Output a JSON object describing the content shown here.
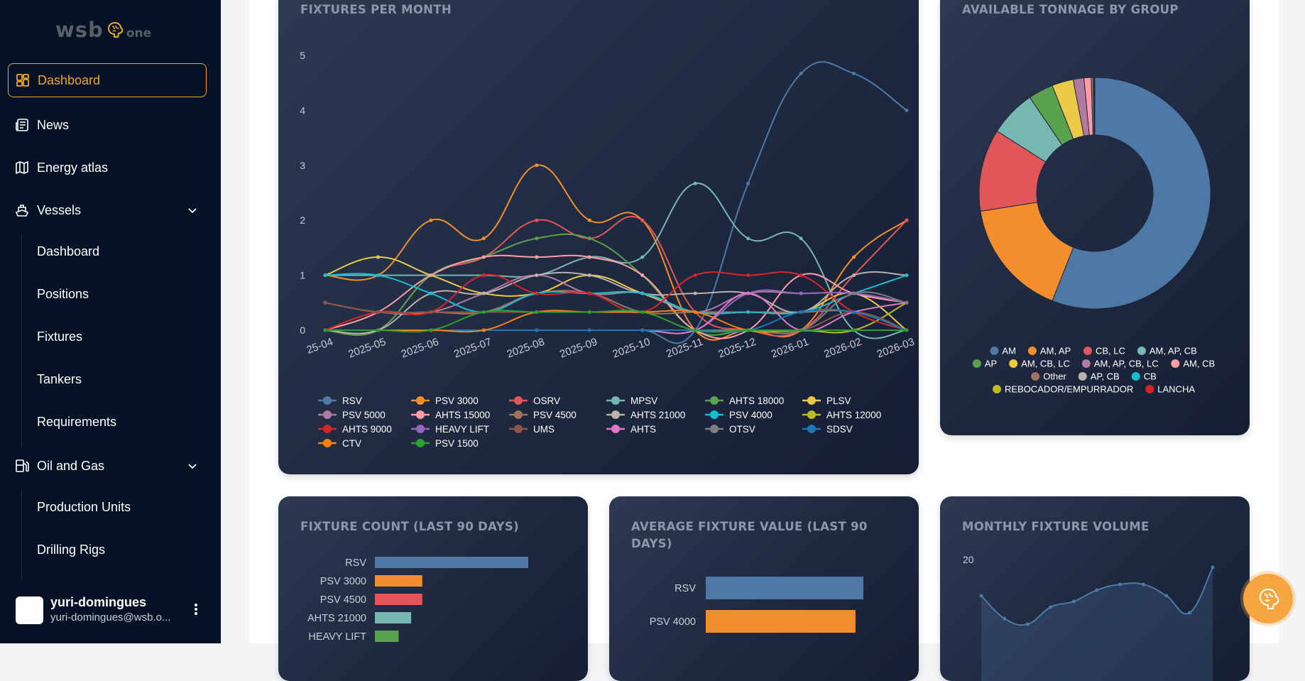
{
  "app": {
    "logo_text": "wsb",
    "logo_suffix": "one"
  },
  "sidebar": {
    "items": [
      {
        "label": "Dashboard",
        "icon": "dashboard-icon",
        "active": true
      },
      {
        "label": "News",
        "icon": "news-icon"
      },
      {
        "label": "Energy atlas",
        "icon": "map-icon"
      },
      {
        "label": "Vessels",
        "icon": "ship-icon",
        "expanded": true
      },
      {
        "label": "Oil and Gas",
        "icon": "fuel-pump-icon",
        "expanded": true
      }
    ],
    "vessels_sub": [
      "Dashboard",
      "Positions",
      "Fixtures",
      "Tankers",
      "Requirements"
    ],
    "oilgas_sub": [
      "Production Units",
      "Drilling Rigs"
    ]
  },
  "user": {
    "name": "yuri-domingues",
    "email": "yuri-domingues@wsb.o..."
  },
  "colors": {
    "accent": "#f5a623",
    "sidebar_bg": "#051124"
  },
  "charts": {
    "fixtures_per_month": {
      "title": "FIXTURES PER MONTH",
      "type": "line",
      "x": [
        "2025-04",
        "2025-05",
        "2025-06",
        "2025-07",
        "2025-08",
        "2025-09",
        "2025-10",
        "2025-11",
        "2025-12",
        "2026-01",
        "2026-02",
        "2026-03"
      ],
      "x_tick_labels": [
        "25-04",
        "2025-05",
        "2025-06",
        "2025-07",
        "2025-08",
        "2025-09",
        "2025-10",
        "2025-11",
        "2025-12",
        "2026-01",
        "2026-02",
        "2026-03"
      ],
      "y_ticks": [
        "0",
        "1",
        "2",
        "3",
        "4",
        "5"
      ],
      "ylim": [
        0,
        5
      ],
      "series": [
        {
          "name": "RSV",
          "color": "#4e79a7",
          "values": [
            0,
            0,
            0,
            0,
            0,
            0,
            0,
            0,
            2.67,
            4.67,
            4.67,
            4
          ]
        },
        {
          "name": "PSV 3000",
          "color": "#f28e2b",
          "values": [
            1,
            1,
            2,
            1.67,
            3,
            2,
            2,
            0,
            0,
            0,
            1.33,
            2
          ]
        },
        {
          "name": "OSRV",
          "color": "#e15759",
          "values": [
            0,
            0,
            1,
            1.33,
            2,
            1.67,
            2,
            0.33,
            0,
            0,
            1,
            2
          ]
        },
        {
          "name": "MPSV",
          "color": "#76b7b2",
          "values": [
            1,
            1,
            1,
            1,
            1,
            1.33,
            1.33,
            2.67,
            1.67,
            1.67,
            0,
            0
          ]
        },
        {
          "name": "AHTS 18000",
          "color": "#59a14f",
          "values": [
            0,
            0,
            1,
            1.33,
            1.67,
            1.67,
            1,
            0,
            0,
            0,
            0,
            0
          ]
        },
        {
          "name": "PLSV",
          "color": "#edc948",
          "values": [
            1,
            1.33,
            1,
            0.67,
            0.67,
            1,
            0.67,
            0.33,
            0.33,
            0.33,
            0.67,
            0
          ]
        },
        {
          "name": "PSV 5000",
          "color": "#b07aa1",
          "values": [
            0.5,
            0.33,
            0.33,
            0.67,
            1,
            0.67,
            0.67,
            0.33,
            0.67,
            0.67,
            0.67,
            0.5
          ]
        },
        {
          "name": "AHTS 15000",
          "color": "#ff9da7",
          "values": [
            0,
            0.33,
            1,
            1.33,
            1.33,
            1.33,
            1,
            0,
            0,
            1,
            0.67,
            0.5
          ]
        },
        {
          "name": "PSV 4500",
          "color": "#9c755f",
          "values": [
            0.5,
            0.33,
            0.33,
            0.33,
            0.67,
            0.67,
            0.33,
            0.33,
            0.33,
            0.33,
            0.33,
            0
          ]
        },
        {
          "name": "AHTS 21000",
          "color": "#bab0ac",
          "values": [
            0,
            0,
            0.67,
            0.67,
            1,
            1,
            0.67,
            0.67,
            0.67,
            0.33,
            1,
            1
          ]
        },
        {
          "name": "PSV 4000",
          "color": "#17becf",
          "values": [
            1,
            1,
            0.67,
            0.33,
            0.67,
            0.67,
            0.67,
            0.33,
            0.33,
            0.33,
            0.67,
            1
          ]
        },
        {
          "name": "AHTS 12000",
          "color": "#bcbd22",
          "values": [
            0,
            0,
            0,
            0,
            0,
            0,
            0,
            0,
            0,
            0,
            0,
            0.5
          ]
        },
        {
          "name": "AHTS 9000",
          "color": "#d62728",
          "values": [
            0,
            0.33,
            0.33,
            1,
            0.67,
            0.67,
            0.33,
            1,
            1,
            1,
            0.33,
            0
          ]
        },
        {
          "name": "HEAVY LIFT",
          "color": "#9467bd",
          "values": [
            0,
            0,
            0,
            0,
            0,
            0,
            0,
            0,
            0.67,
            0.67,
            0.67,
            0.5
          ]
        },
        {
          "name": "UMS",
          "color": "#8c564b",
          "values": [
            0.5,
            0.33,
            0.33,
            0.33,
            0.33,
            0.33,
            0.33,
            0,
            0,
            0,
            0.33,
            0
          ]
        },
        {
          "name": "AHTS",
          "color": "#e377c2",
          "values": [
            0,
            0,
            0,
            0,
            0,
            0,
            0,
            0,
            0.67,
            0,
            0.33,
            0.5
          ]
        },
        {
          "name": "OTSV",
          "color": "#7f7f7f",
          "values": [
            0,
            0,
            0,
            0,
            0,
            0,
            0,
            0,
            0,
            0,
            0.67,
            0.5
          ]
        },
        {
          "name": "SDSV",
          "color": "#1f77b4",
          "values": [
            0,
            0,
            0,
            0,
            0,
            0,
            0,
            0,
            0,
            0.33,
            0.33,
            0
          ]
        },
        {
          "name": "CTV",
          "color": "#ff7f0e",
          "values": [
            0,
            0,
            0,
            0,
            0.33,
            0.33,
            0.33,
            0.33,
            0,
            0,
            0,
            0
          ]
        },
        {
          "name": "PSV 1500",
          "color": "#2ca02c",
          "values": [
            0,
            0,
            0,
            0.33,
            0.33,
            0.33,
            0.33,
            0,
            0,
            0,
            0,
            0
          ]
        }
      ]
    },
    "tonnage_by_group": {
      "title": "AVAILABLE TONNAGE BY GROUP",
      "type": "pie",
      "legend": [
        {
          "name": "AM",
          "color": "#4e79a7",
          "value": 56.0
        },
        {
          "name": "AM, AP",
          "color": "#f28e2b",
          "value": 16.5
        },
        {
          "name": "CB, LC",
          "color": "#e15759",
          "value": 11.5
        },
        {
          "name": "AM, AP, CB",
          "color": "#76b7b2",
          "value": 6.5
        },
        {
          "name": "AP",
          "color": "#59a14f",
          "value": 3.5
        },
        {
          "name": "AM, CB, LC",
          "color": "#edc948",
          "value": 3.0
        },
        {
          "name": "AM, AP, CB, LC",
          "color": "#b07aa1",
          "value": 1.5
        },
        {
          "name": "AM, CB",
          "color": "#ff9da7",
          "value": 1.0
        },
        {
          "name": "Other",
          "color": "#9c755f",
          "value": 0.3
        },
        {
          "name": "AP, CB",
          "color": "#bab0ac",
          "value": 0.1
        },
        {
          "name": "CB",
          "color": "#17becf",
          "value": 0.05
        },
        {
          "name": "REBOCADOR/EMPURRADOR",
          "color": "#bcbd22",
          "value": 0.03
        },
        {
          "name": "LANCHA",
          "color": "#d62728",
          "value": 0.02
        }
      ]
    },
    "fixture_count": {
      "title": "FIXTURE COUNT (LAST 90 DAYS)",
      "type": "bar",
      "categories": [
        "RSV",
        "PSV 3000",
        "PSV 4500",
        "AHTS 21000",
        "HEAVY LIFT"
      ],
      "values": [
        11,
        3.4,
        3.4,
        2.6,
        1.7
      ],
      "colors": [
        "#4e79a7",
        "#f28e2b",
        "#e15759",
        "#76b7b2",
        "#59a14f"
      ]
    },
    "average_fixture_value": {
      "title": "AVERAGE FIXTURE VALUE (LAST 90 DAYS)",
      "type": "bar",
      "categories": [
        "RSV",
        "PSV 4000"
      ],
      "values": [
        100,
        95
      ],
      "colors": [
        "#4e79a7",
        "#f28e2b"
      ]
    },
    "monthly_volume": {
      "title": "MONTHLY FIXTURE VOLUME",
      "type": "area",
      "y_tick": "20",
      "values": [
        15,
        11,
        10,
        13,
        14,
        16,
        17,
        17,
        15,
        12,
        20
      ],
      "color": "#4e79a7"
    }
  }
}
